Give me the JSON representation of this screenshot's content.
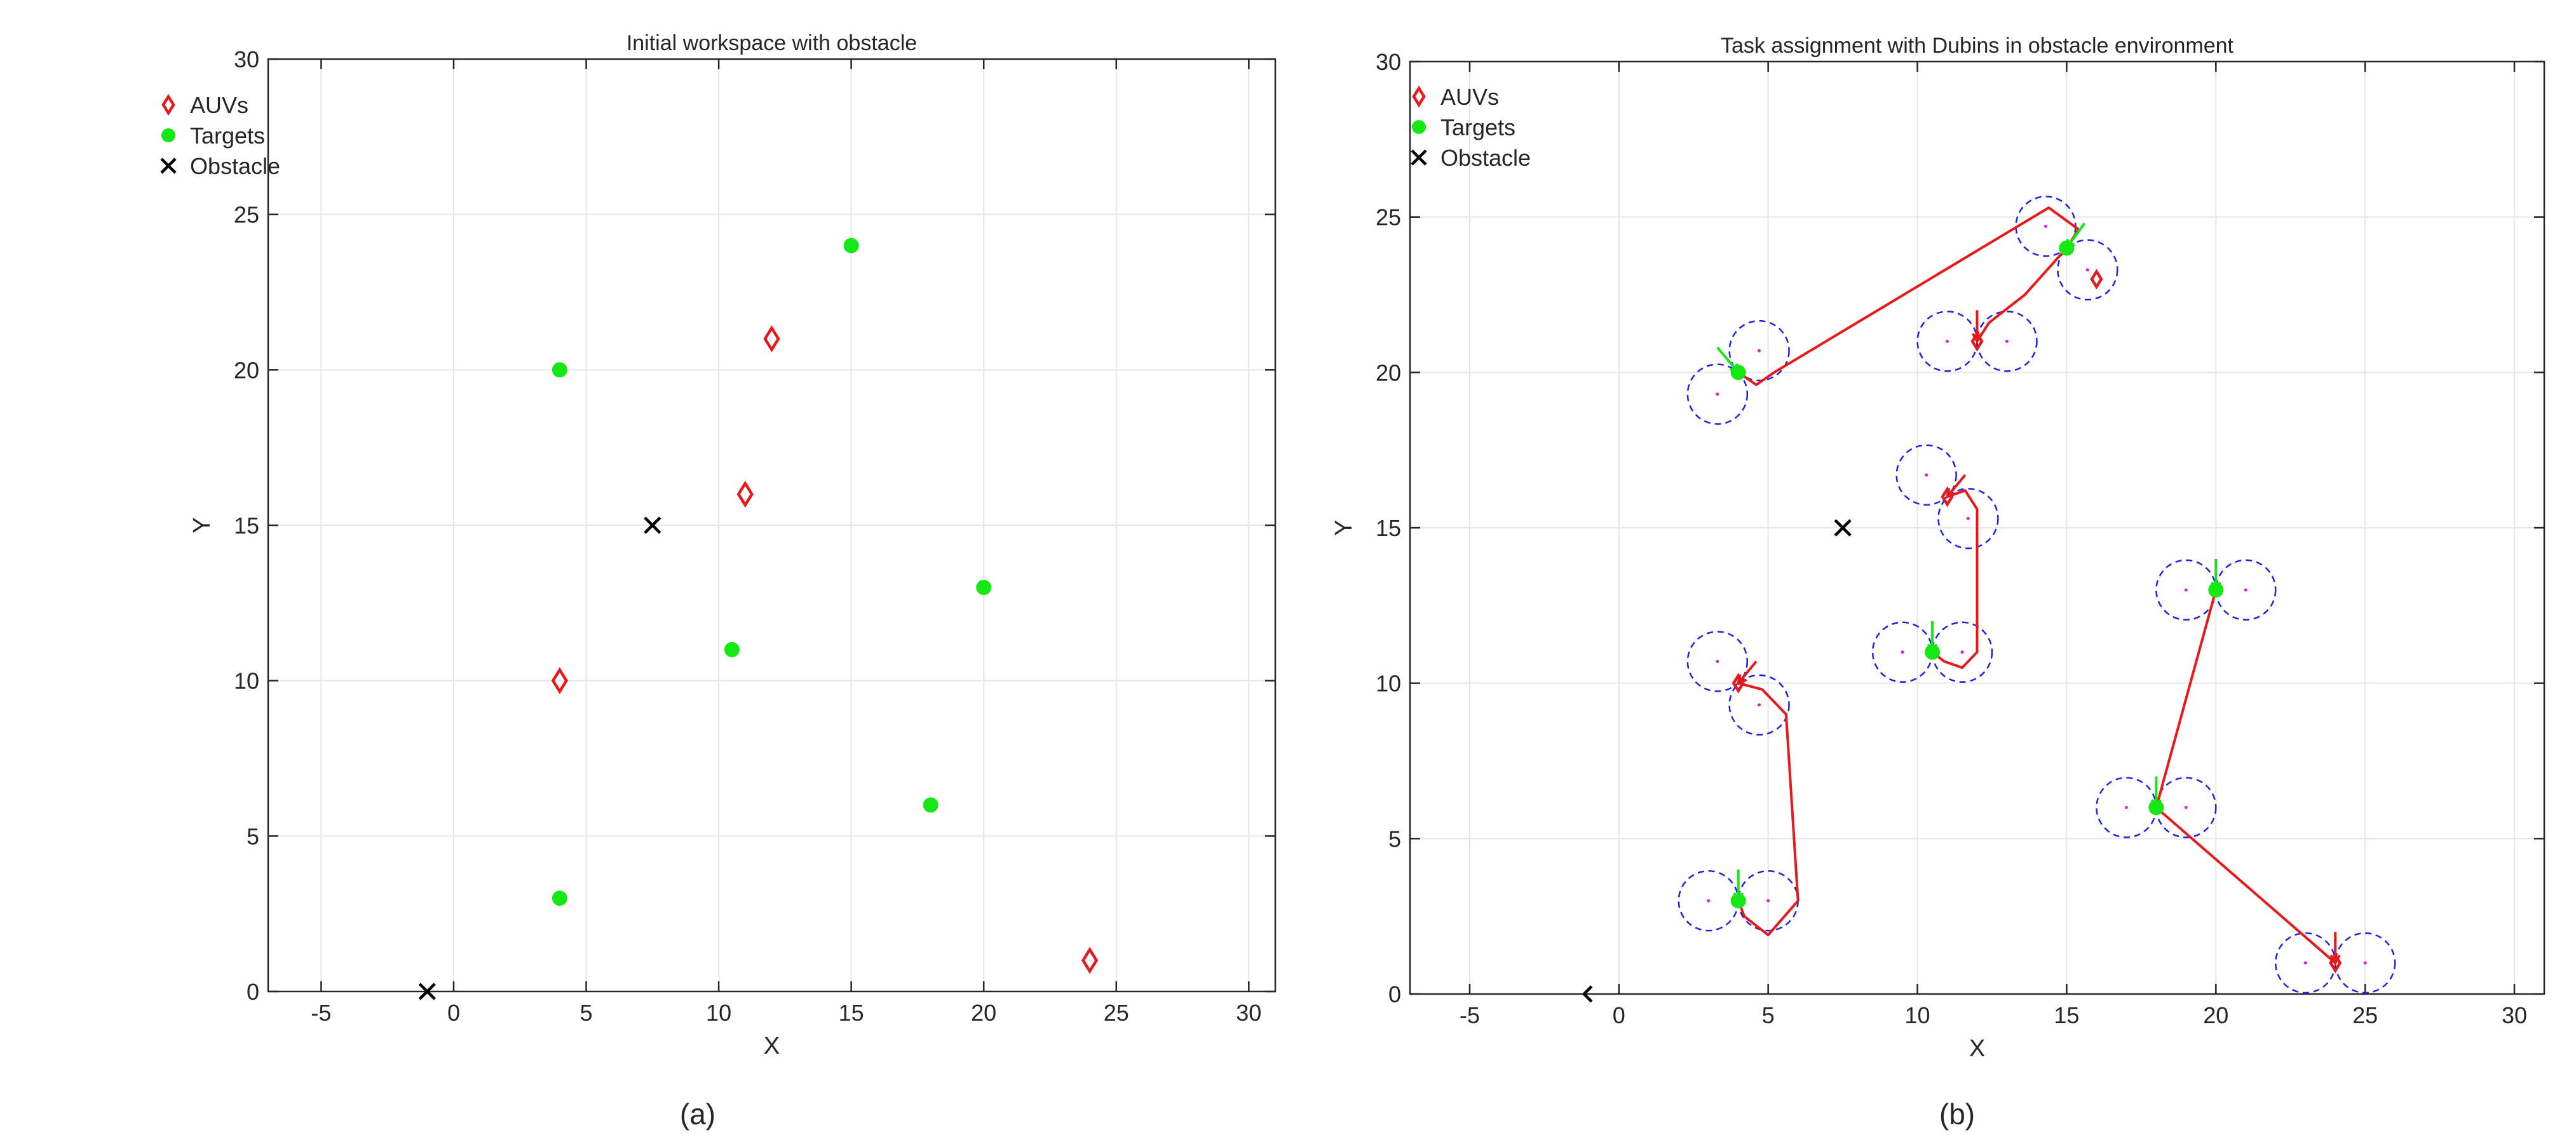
{
  "captions": [
    "(a)",
    "(b)"
  ],
  "chart_data": [
    {
      "type": "scatter",
      "title": "Initial workspace with obstacle",
      "xlabel": "X",
      "ylabel": "Y",
      "xlim": [
        -7,
        31
      ],
      "ylim": [
        0,
        30
      ],
      "xticks": [
        -5,
        0,
        5,
        10,
        15,
        20,
        25,
        30
      ],
      "yticks": [
        0,
        5,
        10,
        15,
        20,
        25,
        30
      ],
      "grid": true,
      "legend_position": "top-left",
      "series": [
        {
          "name": "AUVs",
          "marker": "diamond",
          "color": "#e8191b",
          "points": [
            [
              12,
              21
            ],
            [
              11,
              16
            ],
            [
              4,
              10
            ],
            [
              24,
              1
            ]
          ]
        },
        {
          "name": "Targets",
          "marker": "dot",
          "color": "#16e816",
          "points": [
            [
              15,
              24
            ],
            [
              4,
              20
            ],
            [
              20,
              13
            ],
            [
              10.5,
              11
            ],
            [
              18,
              6
            ],
            [
              4,
              3
            ]
          ]
        },
        {
          "name": "Obstacle",
          "marker": "x",
          "color": "#000000",
          "points": [
            [
              7.5,
              15
            ],
            [
              -1,
              0
            ]
          ]
        }
      ]
    },
    {
      "type": "scatter",
      "title": "Task assignment with Dubins in obstacle environment",
      "xlabel": "X",
      "ylabel": "Y",
      "xlim": [
        -7,
        31
      ],
      "ylim": [
        0,
        30
      ],
      "xticks": [
        -5,
        0,
        5,
        10,
        15,
        20,
        25,
        30
      ],
      "yticks": [
        0,
        5,
        10,
        15,
        20,
        25,
        30
      ],
      "grid": true,
      "legend_position": "top-left",
      "series": [
        {
          "name": "AUVs",
          "marker": "diamond",
          "color": "#e8191b",
          "points": [
            [
              16,
              23
            ],
            [
              12,
              21
            ],
            [
              11,
              16
            ],
            [
              4,
              10
            ],
            [
              24,
              1
            ]
          ]
        },
        {
          "name": "Targets",
          "marker": "dot",
          "color": "#16e816",
          "points": [
            [
              15,
              24
            ],
            [
              4,
              20
            ],
            [
              20,
              13
            ],
            [
              10.5,
              11
            ],
            [
              18,
              6
            ],
            [
              4,
              3
            ]
          ]
        },
        {
          "name": "Obstacle",
          "marker": "x",
          "color": "#000000",
          "points": [
            [
              7.5,
              15
            ]
          ]
        }
      ],
      "paths": [
        [
          [
            4,
            20
          ],
          [
            4.6,
            19.6
          ],
          [
            5.2,
            20.0
          ],
          [
            14.4,
            25.3
          ],
          [
            15.4,
            24.6
          ],
          [
            15.0,
            24.0
          ]
        ],
        [
          [
            11,
            16
          ],
          [
            11.6,
            16.2
          ],
          [
            12.0,
            15.6
          ],
          [
            12.0,
            11.0
          ],
          [
            11.5,
            10.5
          ],
          [
            10.9,
            10.7
          ],
          [
            10.5,
            11.0
          ]
        ],
        [
          [
            4,
            10
          ],
          [
            4.8,
            9.8
          ],
          [
            5.6,
            9.0
          ],
          [
            6.0,
            3.0
          ],
          [
            5.0,
            1.9
          ],
          [
            4.2,
            2.5
          ],
          [
            4,
            3
          ]
        ],
        [
          [
            20,
            13
          ],
          [
            18,
            6
          ],
          [
            24,
            1
          ]
        ],
        [
          [
            12,
            21
          ],
          [
            12.4,
            21.6
          ],
          [
            13.6,
            22.5
          ],
          [
            15.0,
            24.0
          ]
        ]
      ],
      "turning_circles": [
        [
          4.7,
          20.7
        ],
        [
          3.3,
          19.3
        ],
        [
          14.3,
          24.7
        ],
        [
          15.7,
          23.3
        ],
        [
          11,
          21
        ],
        [
          13,
          21
        ],
        [
          10.3,
          16.7
        ],
        [
          11.7,
          15.3
        ],
        [
          9.5,
          11
        ],
        [
          11.5,
          11
        ],
        [
          3.3,
          10.7
        ],
        [
          4.7,
          9.3
        ],
        [
          3,
          3
        ],
        [
          5,
          3
        ],
        [
          19,
          13
        ],
        [
          21,
          13
        ],
        [
          17,
          6
        ],
        [
          19,
          6
        ],
        [
          23,
          1
        ],
        [
          25,
          1
        ]
      ],
      "circle_radius": 1,
      "heading_arrows": [
        {
          "at": [
            4,
            20
          ],
          "from": [
            3.3,
            20.8
          ],
          "color": "#16e816"
        },
        {
          "at": [
            15,
            24
          ],
          "from": [
            15.6,
            24.8
          ],
          "color": "#16e816"
        },
        {
          "at": [
            20,
            13
          ],
          "from": [
            20,
            14.0
          ],
          "color": "#16e816"
        },
        {
          "at": [
            10.5,
            11
          ],
          "from": [
            10.5,
            12.0
          ],
          "color": "#16e816"
        },
        {
          "at": [
            18,
            6
          ],
          "from": [
            18,
            7.0
          ],
          "color": "#16e816"
        },
        {
          "at": [
            4,
            3
          ],
          "from": [
            4,
            4.0
          ],
          "color": "#16e816"
        },
        {
          "at": [
            12,
            21
          ],
          "from": [
            12,
            22.0
          ],
          "color": "#e8191b"
        },
        {
          "at": [
            11,
            16
          ],
          "from": [
            11.6,
            16.7
          ],
          "color": "#e8191b"
        },
        {
          "at": [
            4,
            10
          ],
          "from": [
            4.6,
            10.7
          ],
          "color": "#e8191b"
        },
        {
          "at": [
            24,
            1
          ],
          "from": [
            24,
            2.0
          ],
          "color": "#e8191b"
        }
      ]
    }
  ]
}
